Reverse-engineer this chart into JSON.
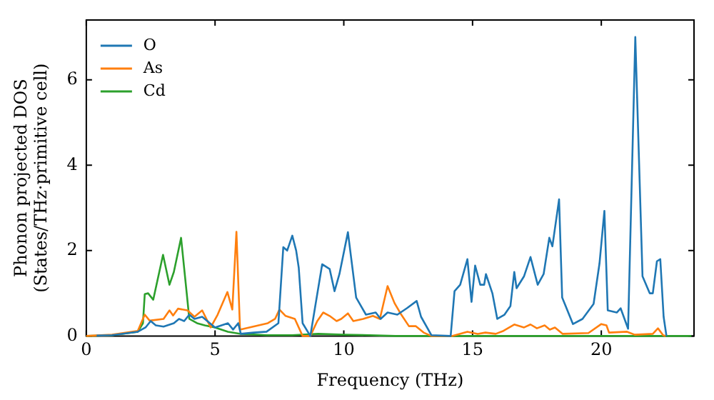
{
  "chart_data": {
    "type": "line",
    "xlabel": "Frequency (THz)",
    "ylabel": "Phonon projected DOS\n(States/THz·primitive cell)",
    "xlim": [
      0,
      23.6
    ],
    "ylim": [
      0,
      7.4
    ],
    "xticks": [
      0,
      5,
      10,
      15,
      20
    ],
    "yticks": [
      0,
      2,
      4,
      6
    ],
    "legend": "top left",
    "series": [
      {
        "name": "O",
        "color": "#1f77b4",
        "x": [
          0.4,
          1,
          2,
          2.3,
          2.5,
          2.7,
          3,
          3.4,
          3.6,
          3.8,
          4,
          4.2,
          4.5,
          5,
          5.5,
          5.7,
          5.9,
          6,
          6.5,
          7,
          7.46,
          7.65,
          7.8,
          8,
          8.15,
          8.25,
          8.4,
          8.7,
          9.16,
          9.45,
          9.64,
          9.83,
          10.16,
          10.48,
          10.86,
          11.24,
          11.43,
          11.7,
          12.08,
          12.45,
          12.83,
          13,
          13.4,
          14.15,
          14.3,
          14.52,
          14.8,
          14.96,
          15.1,
          15.3,
          15.45,
          15.52,
          15.77,
          15.96,
          16.24,
          16.47,
          16.62,
          16.71,
          17,
          17.25,
          17.53,
          17.76,
          17.98,
          18.1,
          18.36,
          18.48,
          18.9,
          19.27,
          19.7,
          19.93,
          20.12,
          20.25,
          20.6,
          20.75,
          21.04,
          21.32,
          21.6,
          21.88,
          22,
          22.16,
          22.29,
          22.42,
          22.53
        ],
        "values": [
          0.01,
          0.02,
          0.1,
          0.2,
          0.35,
          0.25,
          0.22,
          0.3,
          0.4,
          0.35,
          0.5,
          0.4,
          0.45,
          0.2,
          0.3,
          0.15,
          0.3,
          0.05,
          0.08,
          0.1,
          0.3,
          2.08,
          2.0,
          2.35,
          2.0,
          1.6,
          0.3,
          0,
          1.68,
          1.57,
          1.05,
          1.45,
          2.43,
          0.9,
          0.5,
          0.55,
          0.4,
          0.55,
          0.5,
          0.65,
          0.82,
          0.45,
          0.02,
          0,
          1.05,
          1.2,
          1.8,
          0.8,
          1.65,
          1.2,
          1.2,
          1.45,
          1.0,
          0.4,
          0.5,
          0.7,
          1.5,
          1.12,
          1.4,
          1.85,
          1.2,
          1.45,
          2.3,
          2.1,
          3.2,
          0.9,
          0.28,
          0.4,
          0.75,
          1.7,
          2.93,
          0.6,
          0.55,
          0.65,
          0.17,
          7.0,
          1.4,
          1.0,
          1.0,
          1.75,
          1.8,
          0.45,
          0
        ]
      },
      {
        "name": "As",
        "color": "#ff7f0e",
        "x": [
          0,
          1,
          2,
          2.27,
          2.46,
          3,
          3.23,
          3.37,
          3.56,
          3.93,
          4.2,
          4.5,
          4.83,
          5.1,
          5.48,
          5.67,
          5.83,
          5.97,
          7.05,
          7.33,
          7.5,
          7.74,
          8.1,
          8.4,
          8.7,
          8.97,
          9.2,
          9.45,
          9.72,
          9.9,
          10.16,
          10.37,
          10.75,
          11.13,
          11.4,
          11.7,
          11.97,
          12.2,
          12.53,
          12.8,
          13.1,
          13.4,
          14.2,
          14.8,
          15.2,
          15.5,
          15.9,
          16.2,
          16.62,
          17,
          17.25,
          17.5,
          17.8,
          18,
          18.2,
          18.5,
          19.5,
          20,
          20.2,
          20.3,
          21,
          21.3,
          22,
          22.2,
          22.4,
          22.5
        ],
        "values": [
          0,
          0.03,
          0.12,
          0.5,
          0.36,
          0.4,
          0.6,
          0.48,
          0.64,
          0.6,
          0.45,
          0.6,
          0.2,
          0.5,
          1.03,
          0.62,
          2.44,
          0.15,
          0.3,
          0.4,
          0.62,
          0.47,
          0.4,
          0,
          0,
          0.35,
          0.55,
          0.47,
          0.35,
          0.4,
          0.53,
          0.35,
          0.4,
          0.47,
          0.4,
          1.17,
          0.77,
          0.53,
          0.23,
          0.23,
          0.08,
          0,
          0,
          0.1,
          0.05,
          0.08,
          0.05,
          0.12,
          0.27,
          0.2,
          0.27,
          0.18,
          0.25,
          0.15,
          0.2,
          0.05,
          0.07,
          0.28,
          0.25,
          0.08,
          0.1,
          0.03,
          0.05,
          0.18,
          0.02,
          0
        ]
      },
      {
        "name": "Cd",
        "color": "#2ca02c",
        "x": [
          0,
          1,
          2,
          2.2,
          2.27,
          2.4,
          2.6,
          2.98,
          3.23,
          3.4,
          3.68,
          3.9,
          4,
          4.3,
          4.6,
          5,
          5.5,
          6,
          7,
          8,
          9,
          10,
          11,
          12,
          23.5
        ],
        "values": [
          0,
          0.02,
          0.1,
          0.3,
          0.98,
          1.0,
          0.85,
          1.9,
          1.2,
          1.5,
          2.3,
          1.0,
          0.4,
          0.3,
          0.25,
          0.2,
          0.1,
          0.05,
          0.02,
          0.02,
          0.05,
          0.03,
          0.02,
          0,
          0
        ]
      }
    ]
  }
}
